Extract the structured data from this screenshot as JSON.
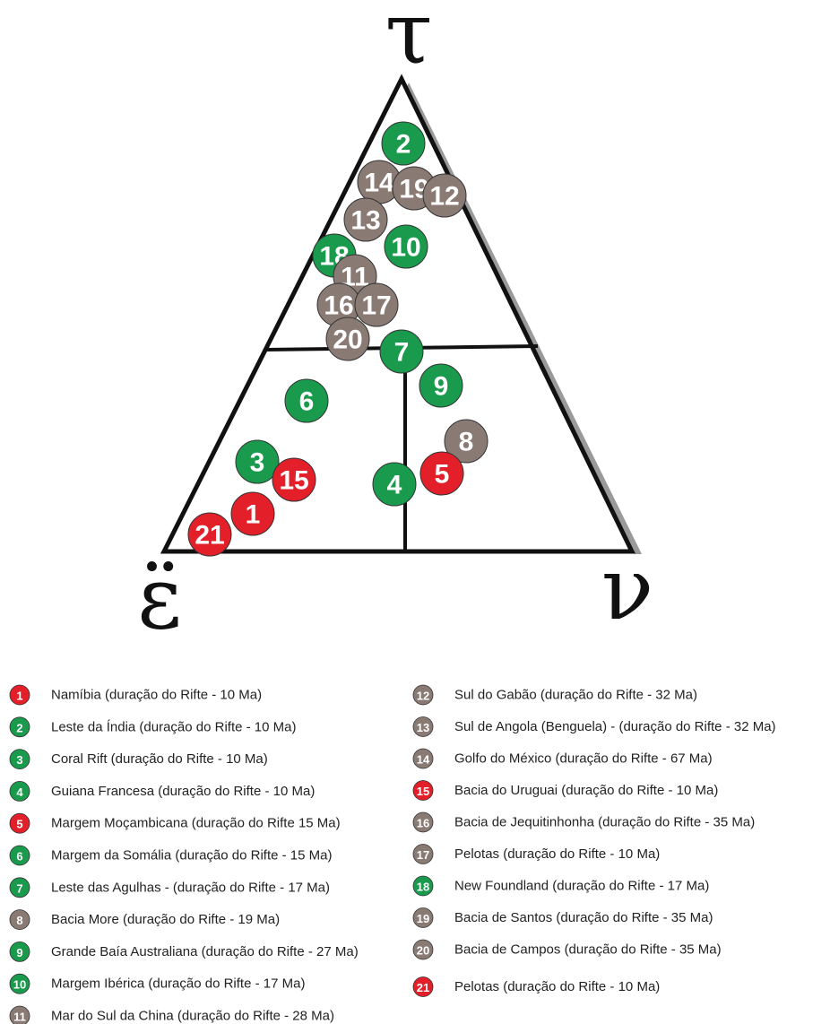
{
  "axes": {
    "top": "τ",
    "left": "ε̈",
    "right": "ν"
  },
  "colors": {
    "green": "#1a9a4c",
    "red": "#e3202a",
    "gray": "#8a7a74"
  },
  "points": [
    {
      "label": "2",
      "color": "green"
    },
    {
      "label": "14",
      "color": "gray"
    },
    {
      "label": "19",
      "color": "gray"
    },
    {
      "label": "12",
      "color": "gray"
    },
    {
      "label": "13",
      "color": "gray"
    },
    {
      "label": "10",
      "color": "green"
    },
    {
      "label": "18",
      "color": "green"
    },
    {
      "label": "11",
      "color": "gray"
    },
    {
      "label": "16",
      "color": "gray"
    },
    {
      "label": "17",
      "color": "gray"
    },
    {
      "label": "20",
      "color": "gray"
    },
    {
      "label": "7",
      "color": "green"
    },
    {
      "label": "9",
      "color": "green"
    },
    {
      "label": "6",
      "color": "green"
    },
    {
      "label": "8",
      "color": "gray"
    },
    {
      "label": "3",
      "color": "green"
    },
    {
      "label": "15",
      "color": "red"
    },
    {
      "label": "4",
      "color": "green"
    },
    {
      "label": "5",
      "color": "red"
    },
    {
      "label": "1",
      "color": "red"
    },
    {
      "label": "21",
      "color": "red"
    }
  ],
  "legend": [
    {
      "label": "1",
      "color": "red",
      "text": "Namíbia (duração do Rifte - 10 Ma)"
    },
    {
      "label": "2",
      "color": "green",
      "text": "Leste da Índia (duração do Rifte - 10 Ma)"
    },
    {
      "label": "3",
      "color": "green",
      "text": "Coral Rift (duração do Rifte - 10 Ma)"
    },
    {
      "label": "4",
      "color": "green",
      "text": "Guiana Francesa (duração do Rifte - 10 Ma)"
    },
    {
      "label": "5",
      "color": "red",
      "text": "Margem Moçambicana (duração do Rifte 15 Ma)"
    },
    {
      "label": "6",
      "color": "green",
      "text": "Margem da Somália (duração do Rifte - 15 Ma)"
    },
    {
      "label": "7",
      "color": "green",
      "text": "Leste das Agulhas - (duração do Rifte - 17 Ma)"
    },
    {
      "label": "8",
      "color": "gray",
      "text": "Bacia More (duração do Rifte - 19 Ma)"
    },
    {
      "label": "9",
      "color": "green",
      "text": "Grande Baía Australiana (duração do Rifte - 27 Ma)"
    },
    {
      "label": "10",
      "color": "green",
      "text": "Margem Ibérica (duração do Rifte - 17 Ma)"
    },
    {
      "label": "11",
      "color": "gray",
      "text": "Mar do Sul da China (duração do Rifte - 28 Ma)"
    },
    {
      "label": "12",
      "color": "gray",
      "text": "Sul do Gabão (duração do Rifte - 32 Ma)"
    },
    {
      "label": "13",
      "color": "gray",
      "text": "Sul de Angola (Benguela) - (duração do Rifte - 32 Ma)"
    },
    {
      "label": "14",
      "color": "gray",
      "text": "Golfo do México (duração do Rifte - 67 Ma)"
    },
    {
      "label": "15",
      "color": "red",
      "text": "Bacia do Uruguai (duração do Rifte - 10 Ma)"
    },
    {
      "label": "16",
      "color": "gray",
      "text": "Bacia de Jequitinhonha (duração do Rifte - 35 Ma)"
    },
    {
      "label": "17",
      "color": "gray",
      "text": "Pelotas (duração do Rifte - 10 Ma)"
    },
    {
      "label": "18",
      "color": "green",
      "text": "New Foundland (duração do Rifte - 17 Ma)"
    },
    {
      "label": "19",
      "color": "gray",
      "text": "Bacia de Santos (duração do Rifte - 35 Ma)"
    },
    {
      "label": "20",
      "color": "gray",
      "text": "Bacia de Campos (duração do Rifte - 35 Ma)"
    },
    {
      "label": "21",
      "color": "red",
      "text": "Pelotas (duração do Rifte - 10 Ma)"
    }
  ]
}
